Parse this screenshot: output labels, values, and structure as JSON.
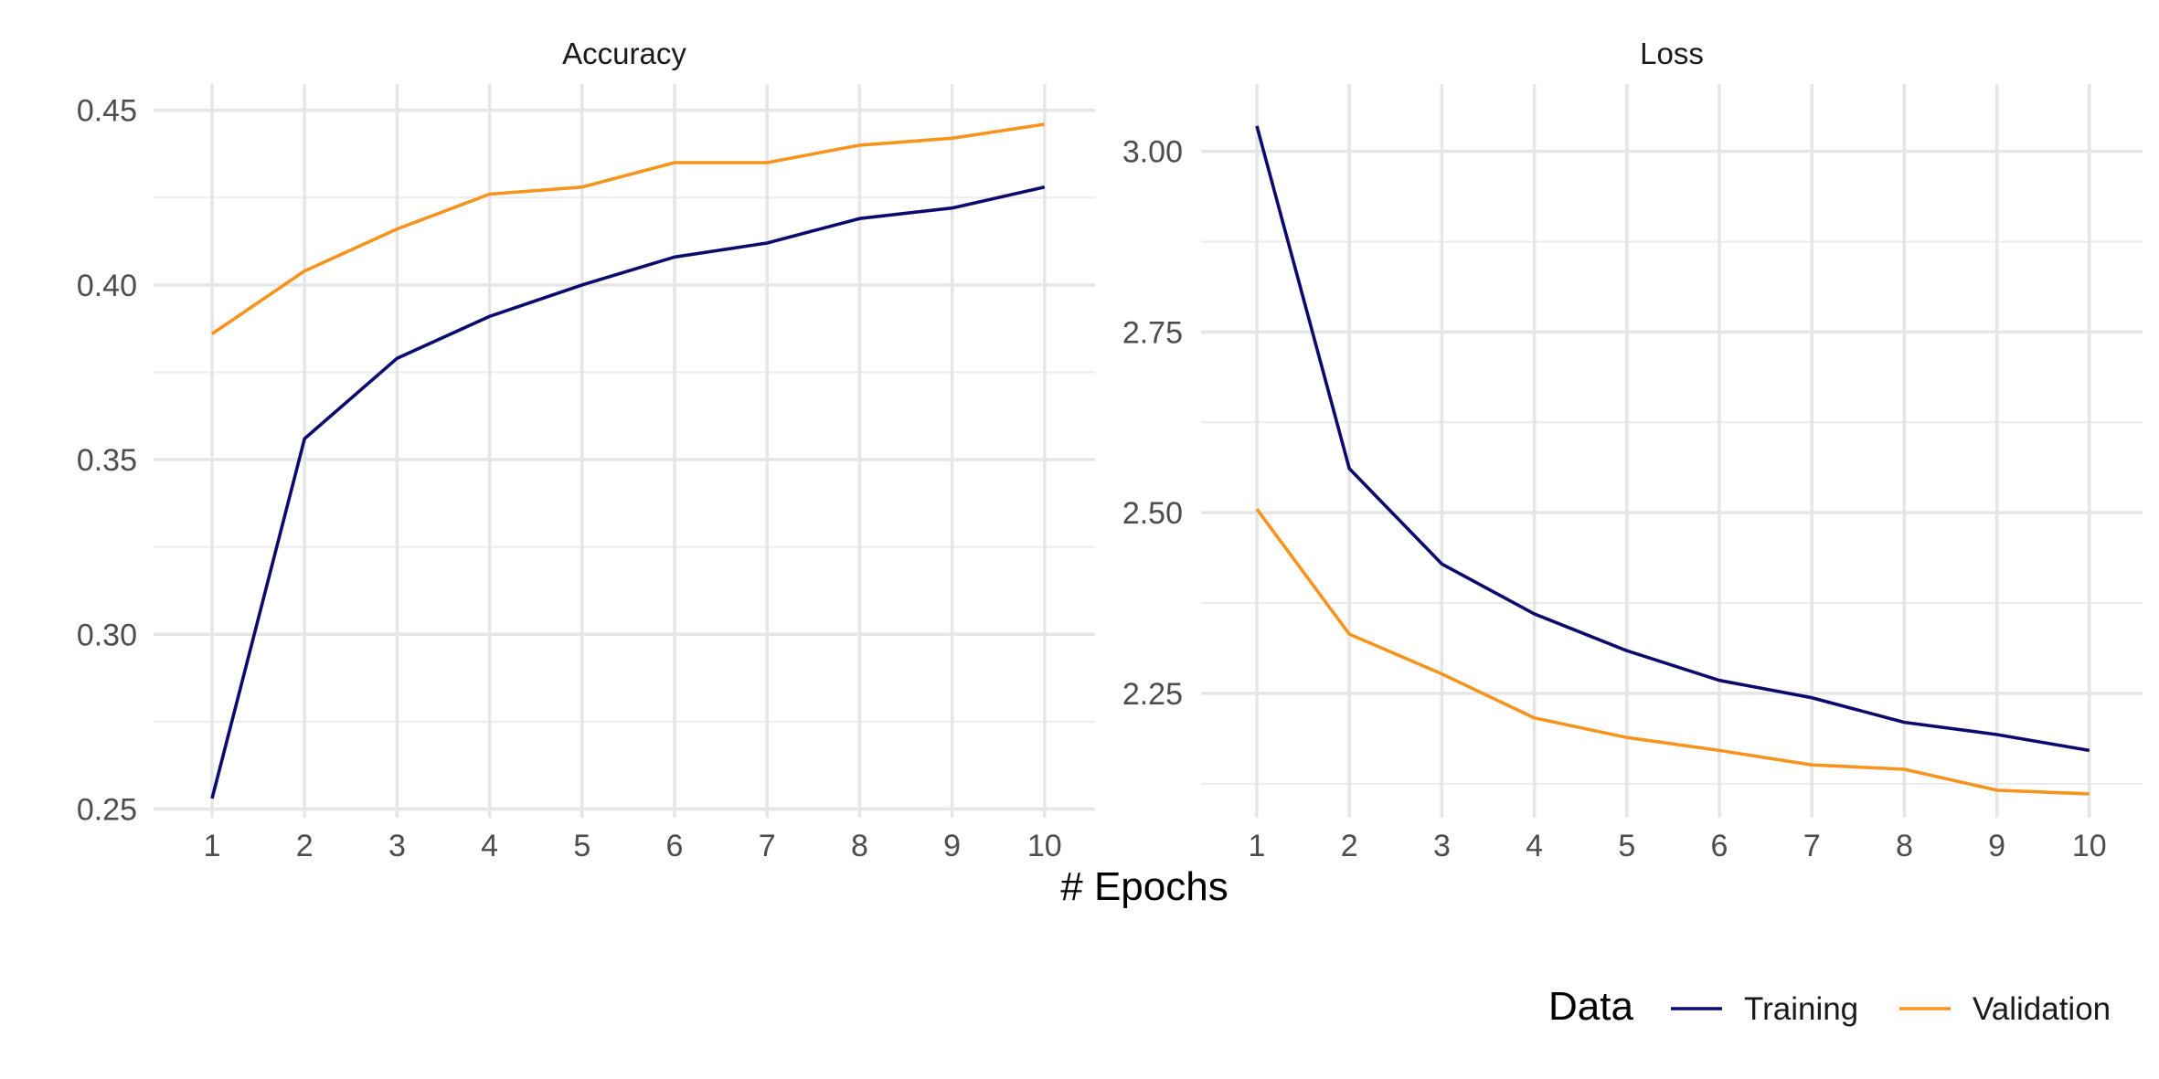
{
  "chart_data": {
    "type": "line",
    "xlabel": "# Epochs",
    "legend": {
      "title": "Data",
      "position": "bottom-right",
      "entries": [
        {
          "name": "Training",
          "color": "#0d0a6e"
        },
        {
          "name": "Validation",
          "color": "#f7941d"
        }
      ]
    },
    "grid": true,
    "x": [
      1,
      2,
      3,
      4,
      5,
      6,
      7,
      8,
      9,
      10
    ],
    "panels": [
      {
        "title": "Accuracy",
        "ylim": [
          0.2475,
          0.4575
        ],
        "yticks": [
          0.25,
          0.3,
          0.35,
          0.4,
          0.45
        ],
        "ytick_labels": [
          "0.25",
          "0.30",
          "0.35",
          "0.40",
          "0.45"
        ],
        "series": [
          {
            "name": "Training",
            "color": "#0d0a6e",
            "values": [
              0.253,
              0.356,
              0.379,
              0.391,
              0.4,
              0.408,
              0.412,
              0.419,
              0.422,
              0.428
            ]
          },
          {
            "name": "Validation",
            "color": "#f7941d",
            "values": [
              0.386,
              0.404,
              0.416,
              0.426,
              0.428,
              0.435,
              0.435,
              0.44,
              0.442,
              0.446
            ]
          }
        ]
      },
      {
        "title": "Loss",
        "ylim": [
          2.078,
          3.093
        ],
        "yticks": [
          2.25,
          2.5,
          2.75,
          3.0
        ],
        "ytick_labels": [
          "2.25",
          "2.50",
          "2.75",
          "3.00"
        ],
        "series": [
          {
            "name": "Training",
            "color": "#0d0a6e",
            "values": [
              3.035,
              2.561,
              2.429,
              2.36,
              2.309,
              2.268,
              2.244,
              2.21,
              2.193,
              2.171
            ]
          },
          {
            "name": "Validation",
            "color": "#f7941d",
            "values": [
              2.505,
              2.332,
              2.277,
              2.216,
              2.189,
              2.171,
              2.151,
              2.145,
              2.116,
              2.111
            ]
          }
        ]
      }
    ],
    "xtick_labels": [
      "1",
      "2",
      "3",
      "4",
      "5",
      "6",
      "7",
      "8",
      "9",
      "10"
    ]
  }
}
